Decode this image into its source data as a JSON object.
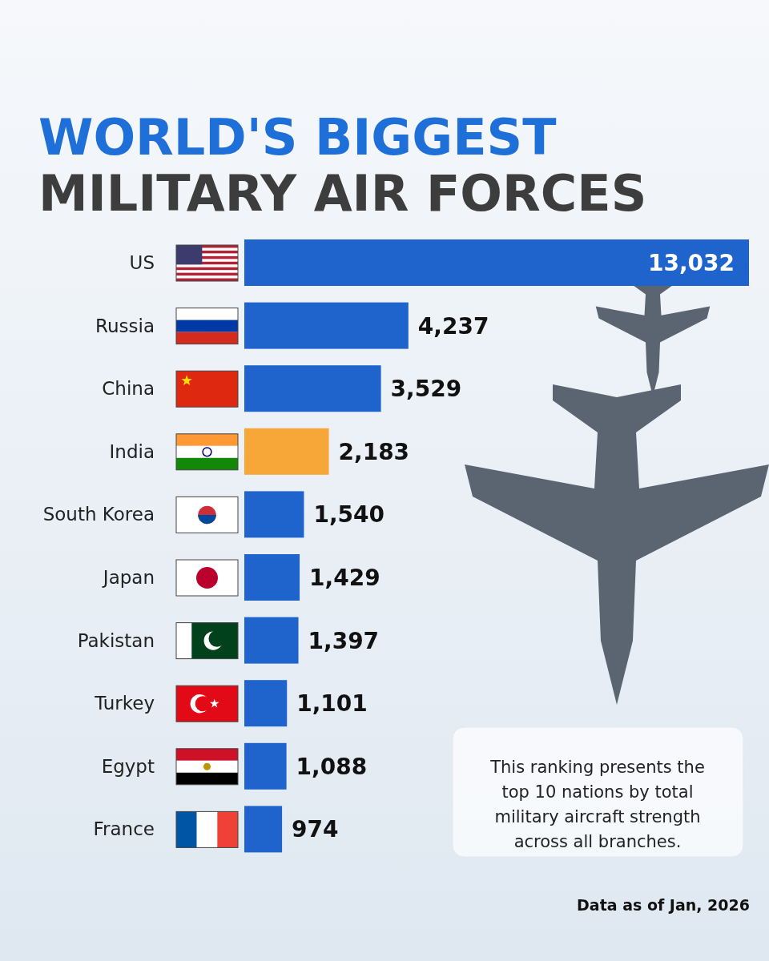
{
  "chart_data": {
    "type": "bar",
    "orientation": "horizontal",
    "title": "WORLD'S BIGGEST",
    "subtitle": "MILITARY AIR FORCES",
    "categories": [
      "US",
      "Russia",
      "China",
      "India",
      "South Korea",
      "Japan",
      "Pakistan",
      "Turkey",
      "Egypt",
      "France"
    ],
    "values": [
      13032,
      4237,
      3529,
      2183,
      1540,
      1429,
      1397,
      1101,
      1088,
      974
    ],
    "colors": [
      "#1f63cc",
      "#1f63cc",
      "#1f63cc",
      "#f7a638",
      "#1f63cc",
      "#1f63cc",
      "#1f63cc",
      "#1f63cc",
      "#1f63cc",
      "#1f63cc"
    ],
    "value_labels": [
      "13,032",
      "4,237",
      "3,529",
      "2,183",
      "1,540",
      "1,429",
      "1,397",
      "1,101",
      "1,088",
      "974"
    ],
    "annotations": [
      "This ranking presents the top 10 nations by total military aircraft strength across all branches.",
      "Data as of Jan, 2026"
    ]
  }
}
